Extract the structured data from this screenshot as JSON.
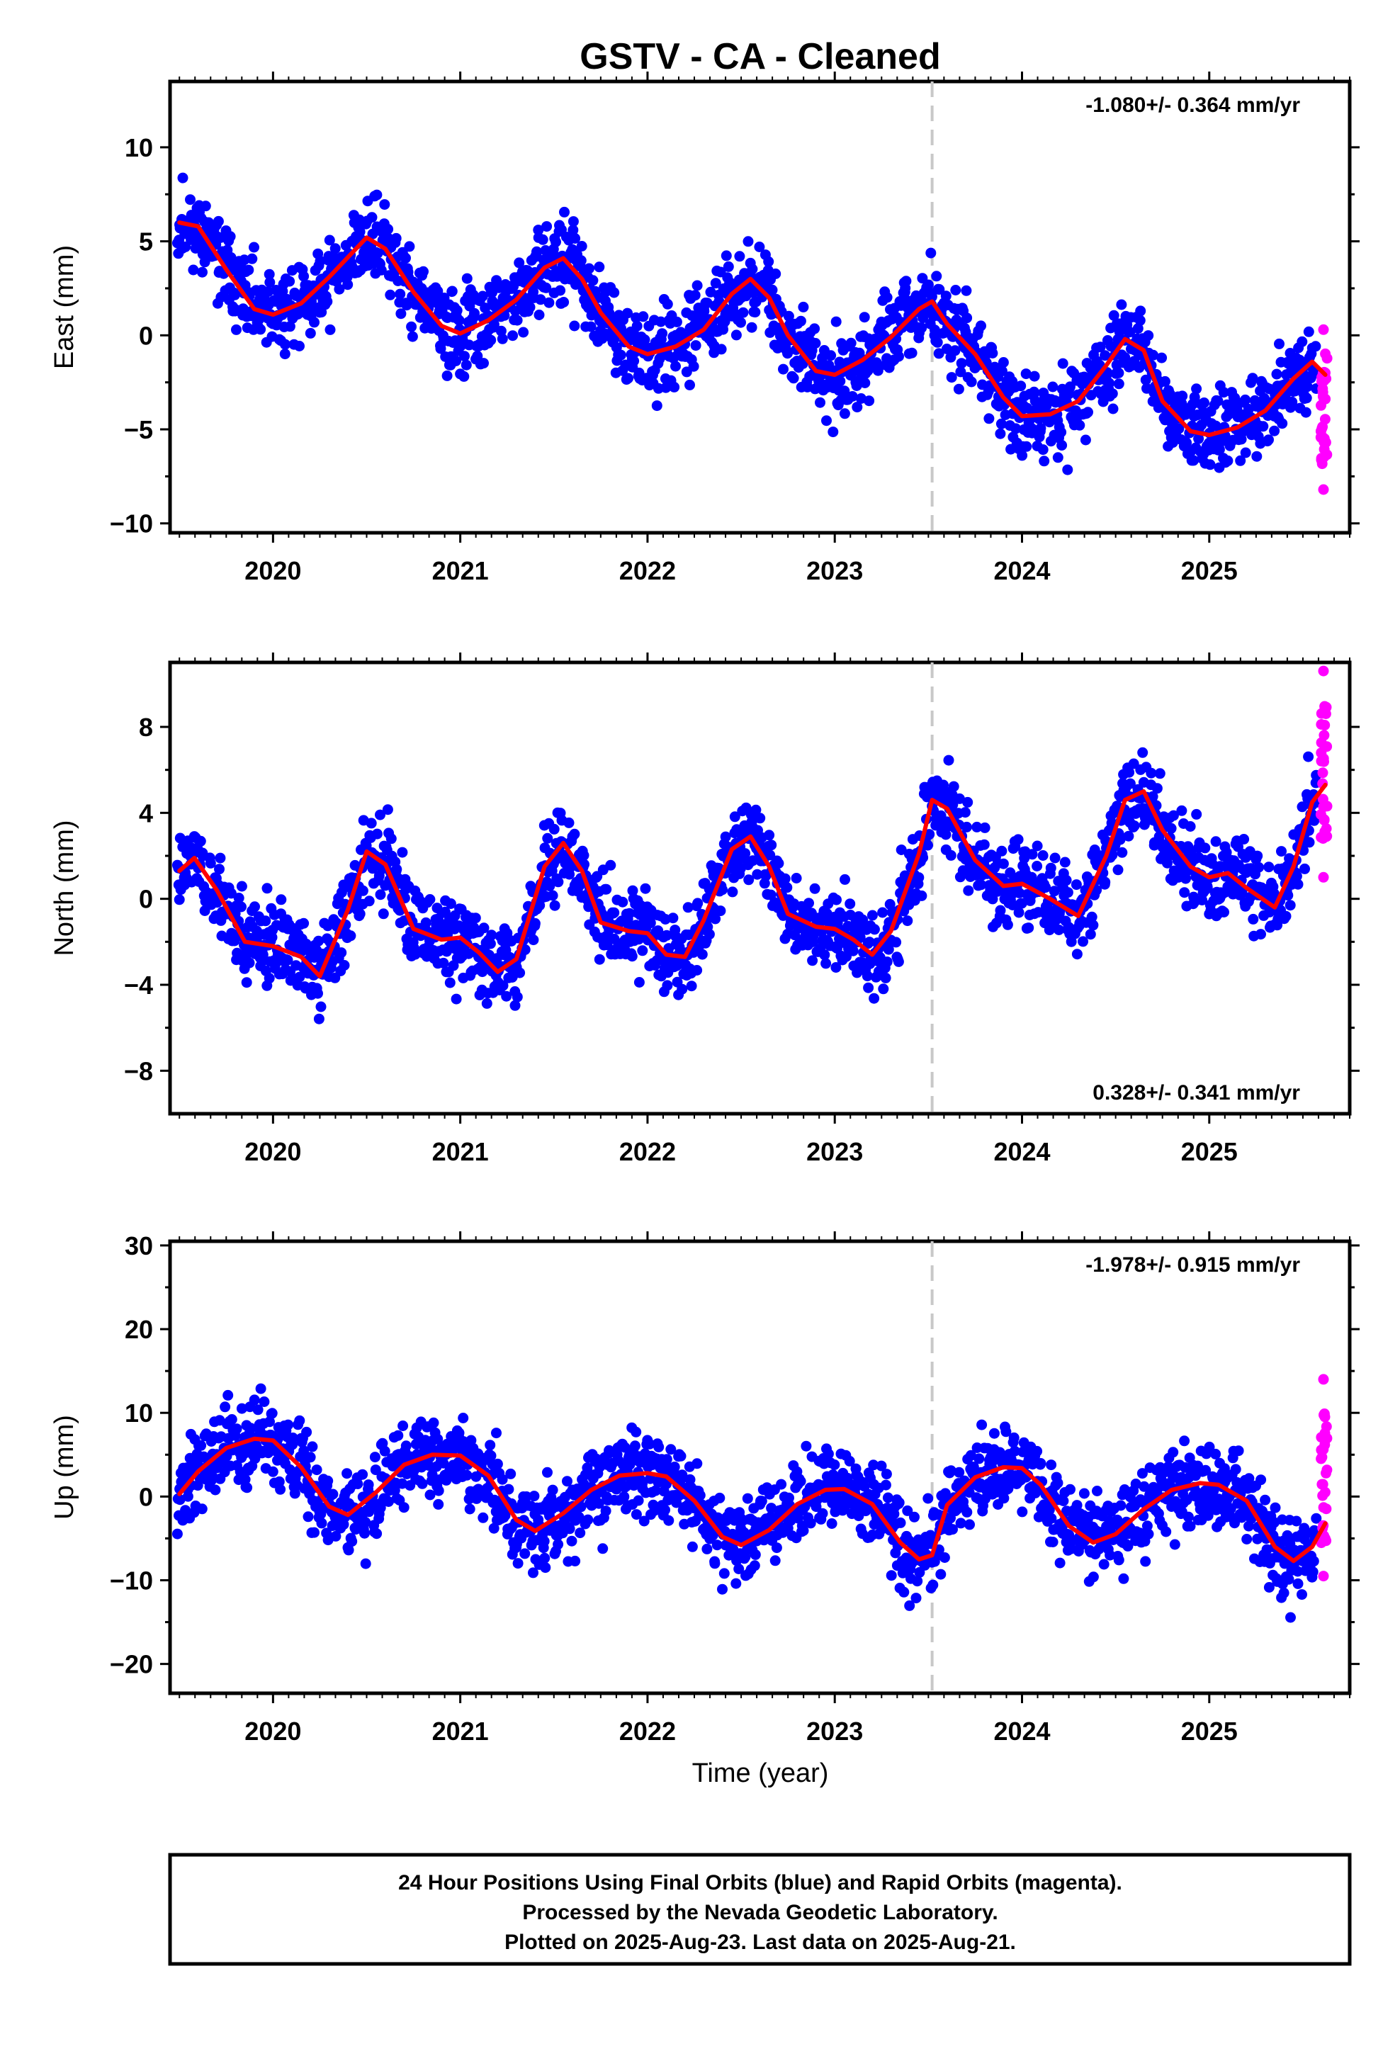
{
  "chart_data": {
    "type": "scatter",
    "title": "GSTV  - CA - Cleaned",
    "xlabel": "Time (year)",
    "xlim": [
      2019.45,
      2025.75
    ],
    "x_ticks": [
      "2020",
      "2021",
      "2022",
      "2023",
      "2024",
      "2025"
    ],
    "equipment_change_year": 2023.52,
    "colors": {
      "final_orbits": "#0000ff",
      "rapid_orbits": "#ff00ff",
      "model": "#ff0000",
      "break_line": "#c8c8c8"
    },
    "panels": [
      {
        "name": "East",
        "ylabel": "East (mm)",
        "ylim": [
          -10.5,
          13.5
        ],
        "y_ticks": [
          "10",
          "5",
          "0",
          "−5",
          "−10"
        ],
        "y_tick_values": [
          10,
          5,
          0,
          -5,
          -10
        ],
        "rate_text": "-1.080+/- 0.364 mm/yr",
        "rate_position": "top-right",
        "model_curve": {
          "x": [
            2019.5,
            2019.6,
            2019.75,
            2019.9,
            2020.0,
            2020.15,
            2020.3,
            2020.5,
            2020.6,
            2020.75,
            2020.9,
            2021.0,
            2021.15,
            2021.3,
            2021.45,
            2021.55,
            2021.65,
            2021.75,
            2021.9,
            2022.0,
            2022.15,
            2022.3,
            2022.45,
            2022.55,
            2022.65,
            2022.75,
            2022.9,
            2023.0,
            2023.15,
            2023.3,
            2023.45,
            2023.52,
            2023.6,
            2023.75,
            2023.9,
            2024.0,
            2024.15,
            2024.3,
            2024.45,
            2024.55,
            2024.65,
            2024.75,
            2024.9,
            2025.0,
            2025.15,
            2025.3,
            2025.45,
            2025.55,
            2025.62
          ],
          "y": [
            6.0,
            5.8,
            3.5,
            1.4,
            1.1,
            1.7,
            3.1,
            5.2,
            4.6,
            2.3,
            0.5,
            0.1,
            0.8,
            1.9,
            3.6,
            4.1,
            3.0,
            1.2,
            -0.6,
            -1.0,
            -0.6,
            0.3,
            2.2,
            3.0,
            2.0,
            0.0,
            -1.9,
            -2.1,
            -1.3,
            -0.1,
            1.4,
            1.8,
            0.6,
            -1.0,
            -3.3,
            -4.3,
            -4.2,
            -3.5,
            -1.6,
            -0.2,
            -0.8,
            -3.5,
            -5.1,
            -5.3,
            -4.9,
            -4.0,
            -2.3,
            -1.4,
            -2.1
          ]
        },
        "final_points_seed": 11,
        "rapid_orbit_range": [
          -8.2,
          0.3
        ]
      },
      {
        "name": "North",
        "ylabel": "North (mm)",
        "ylim": [
          -10.0,
          11.0
        ],
        "y_ticks": [
          "8",
          "4",
          "0",
          "−4",
          "−8"
        ],
        "y_tick_values": [
          8,
          4,
          0,
          -4,
          -8
        ],
        "rate_text": "0.328+/- 0.341 mm/yr",
        "rate_position": "bottom-right",
        "model_curve": {
          "x": [
            2019.5,
            2019.58,
            2019.7,
            2019.85,
            2020.0,
            2020.15,
            2020.25,
            2020.4,
            2020.5,
            2020.6,
            2020.75,
            2020.9,
            2021.0,
            2021.1,
            2021.2,
            2021.3,
            2021.45,
            2021.55,
            2021.65,
            2021.75,
            2021.9,
            2022.0,
            2022.1,
            2022.2,
            2022.3,
            2022.45,
            2022.55,
            2022.65,
            2022.75,
            2022.9,
            2023.0,
            2023.1,
            2023.2,
            2023.3,
            2023.45,
            2023.52,
            2023.6,
            2023.75,
            2023.9,
            2024.0,
            2024.15,
            2024.3,
            2024.45,
            2024.55,
            2024.65,
            2024.75,
            2024.9,
            2025.0,
            2025.1,
            2025.2,
            2025.35,
            2025.45,
            2025.55,
            2025.62
          ],
          "y": [
            1.3,
            1.9,
            0.4,
            -2.0,
            -2.2,
            -2.7,
            -3.6,
            -0.5,
            2.2,
            1.6,
            -1.4,
            -1.9,
            -1.8,
            -2.5,
            -3.4,
            -2.8,
            1.5,
            2.6,
            1.3,
            -1.1,
            -1.5,
            -1.6,
            -2.6,
            -2.7,
            -1.0,
            2.3,
            2.9,
            1.5,
            -0.7,
            -1.3,
            -1.4,
            -1.9,
            -2.6,
            -1.5,
            2.1,
            4.6,
            4.2,
            1.8,
            0.6,
            0.7,
            0.0,
            -0.8,
            2.0,
            4.6,
            5.0,
            3.2,
            1.5,
            1.0,
            1.2,
            0.5,
            -0.4,
            1.5,
            4.5,
            5.3
          ]
        },
        "final_points_seed": 23,
        "rapid_orbit_range": [
          1.0,
          10.6
        ]
      },
      {
        "name": "Up",
        "ylabel": "Up (mm)",
        "ylim": [
          -23.5,
          30.5
        ],
        "y_ticks": [
          "30",
          "20",
          "10",
          "0",
          "−10",
          "−20"
        ],
        "y_tick_values": [
          30,
          20,
          10,
          0,
          -10,
          -20
        ],
        "rate_text": "-1.978+/- 0.915 mm/yr",
        "rate_position": "top-right",
        "model_curve": {
          "x": [
            2019.5,
            2019.6,
            2019.75,
            2019.9,
            2020.0,
            2020.15,
            2020.3,
            2020.4,
            2020.55,
            2020.7,
            2020.85,
            2021.0,
            2021.15,
            2021.3,
            2021.4,
            2021.55,
            2021.7,
            2021.85,
            2022.0,
            2022.1,
            2022.25,
            2022.4,
            2022.5,
            2022.65,
            2022.8,
            2022.95,
            2023.05,
            2023.2,
            2023.35,
            2023.45,
            2023.52,
            2023.6,
            2023.75,
            2023.9,
            2024.0,
            2024.1,
            2024.25,
            2024.38,
            2024.5,
            2024.65,
            2024.8,
            2024.95,
            2025.05,
            2025.2,
            2025.35,
            2025.45,
            2025.55,
            2025.62
          ],
          "y": [
            0.3,
            3.0,
            5.8,
            6.9,
            6.7,
            3.5,
            -1.2,
            -2.2,
            0.5,
            3.8,
            5.0,
            4.9,
            2.5,
            -2.8,
            -4.1,
            -2.0,
            0.8,
            2.5,
            2.8,
            2.4,
            -0.5,
            -4.8,
            -5.8,
            -4.0,
            -0.9,
            0.8,
            0.9,
            -0.9,
            -5.5,
            -7.5,
            -7.0,
            -1.0,
            2.3,
            3.5,
            3.4,
            1.4,
            -3.5,
            -5.5,
            -4.5,
            -1.5,
            0.8,
            1.6,
            1.4,
            -0.5,
            -6.0,
            -7.7,
            -6.0,
            -3.2
          ]
        },
        "final_points_seed": 37,
        "rapid_orbit_range": [
          -9.5,
          14.0
        ]
      }
    ]
  },
  "footer": {
    "line1": "24 Hour Positions Using Final Orbits (blue) and Rapid Orbits (magenta).",
    "line2": "Processed by the Nevada Geodetic Laboratory.",
    "line3": "Plotted on 2025-Aug-23. Last data on 2025-Aug-21."
  }
}
